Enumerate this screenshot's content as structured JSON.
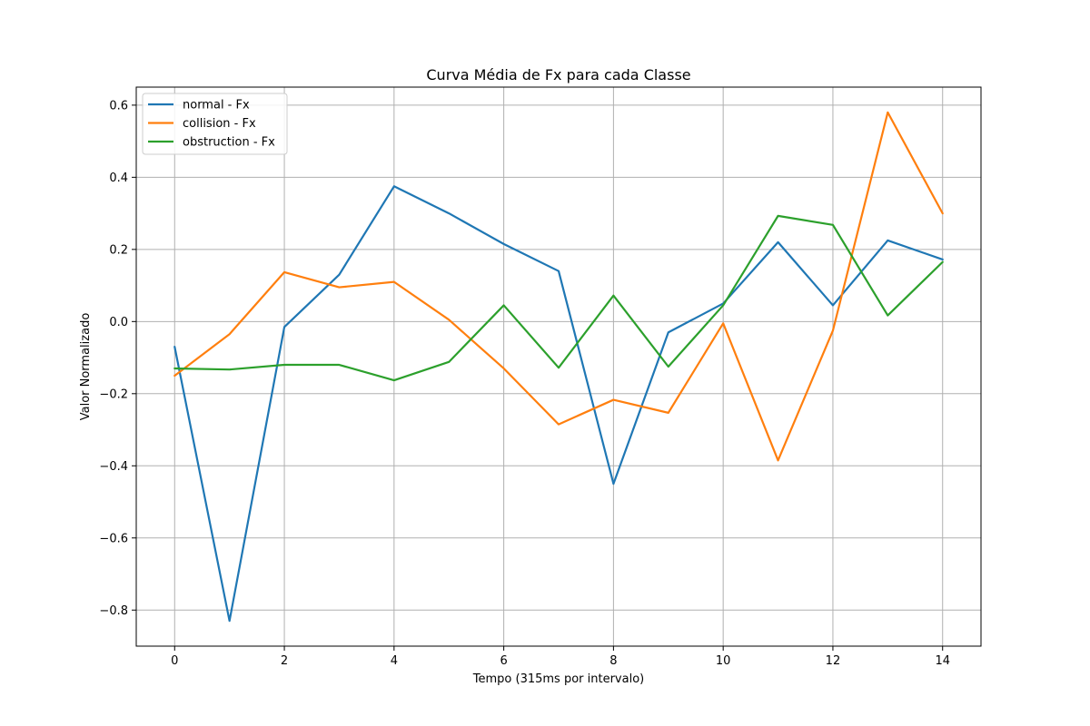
{
  "chart_data": {
    "type": "line",
    "title": "Curva Média de Fx para cada Classe",
    "xlabel": "Tempo (315ms por intervalo)",
    "ylabel": "Valor Normalizado",
    "x": [
      0,
      1,
      2,
      3,
      4,
      5,
      6,
      7,
      8,
      9,
      10,
      11,
      12,
      13,
      14
    ],
    "xticks": [
      0,
      2,
      4,
      6,
      8,
      10,
      12,
      14
    ],
    "xtick_labels": [
      "0",
      "2",
      "4",
      "6",
      "8",
      "10",
      "12",
      "14"
    ],
    "xlim": [
      -0.7,
      14.7
    ],
    "yticks": [
      -0.8,
      -0.6,
      -0.4,
      -0.2,
      0.0,
      0.2,
      0.4,
      0.6
    ],
    "ytick_labels": [
      "−0.8",
      "−0.6",
      "−0.4",
      "−0.2",
      "0.0",
      "0.2",
      "0.4",
      "0.6"
    ],
    "ylim": [
      -0.9,
      0.65
    ],
    "grid": true,
    "legend_position": "top-left",
    "series": [
      {
        "name": "normal - Fx",
        "color": "#1f77b4",
        "values": [
          -0.07,
          -0.83,
          -0.015,
          0.13,
          0.375,
          0.3,
          0.215,
          0.14,
          -0.45,
          -0.03,
          0.05,
          0.22,
          0.045,
          0.225,
          0.172
        ]
      },
      {
        "name": "collision - Fx",
        "color": "#ff7f0e",
        "values": [
          -0.15,
          -0.035,
          0.137,
          0.095,
          0.11,
          0.005,
          -0.13,
          -0.285,
          -0.217,
          -0.253,
          -0.005,
          -0.385,
          -0.025,
          0.58,
          0.3
        ]
      },
      {
        "name": "obstruction - Fx",
        "color": "#2ca02c",
        "values": [
          -0.13,
          -0.133,
          -0.12,
          -0.12,
          -0.163,
          -0.112,
          0.045,
          -0.128,
          0.072,
          -0.125,
          0.045,
          0.293,
          0.268,
          0.017,
          0.165
        ]
      }
    ]
  }
}
